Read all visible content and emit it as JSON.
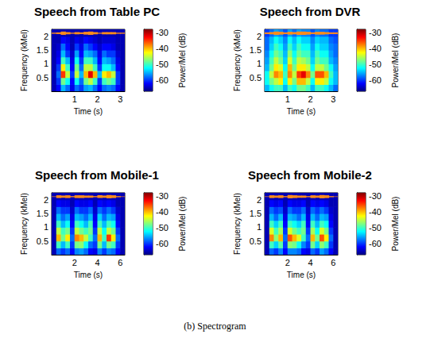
{
  "caption": "(b) Spectrogram",
  "chart_data": [
    {
      "type": "heatmap",
      "title": "Speech from Table PC",
      "xlabel": "Time (s)",
      "ylabel": "Frequency (kMel)",
      "xlim": [
        0,
        3.2
      ],
      "xticks": [
        1,
        2,
        3
      ],
      "ylim": [
        0,
        2.25
      ],
      "yticks": [
        0.5,
        1,
        1.5,
        2
      ],
      "time_edges": [
        0,
        0.2,
        0.4,
        0.6,
        0.8,
        1.0,
        1.2,
        1.4,
        1.6,
        1.8,
        2.0,
        2.2,
        2.4,
        2.6,
        2.8,
        3.0,
        3.2
      ],
      "freq_edges": [
        0,
        0.25,
        0.5,
        0.75,
        1.0,
        1.25,
        1.5,
        1.75,
        2.0,
        2.25
      ],
      "power": [
        [
          -65,
          -62,
          -55,
          -58,
          -63,
          -58,
          -60,
          -56,
          -55,
          -58,
          -62,
          -58,
          -57,
          -58,
          -62,
          -65
        ],
        [
          -65,
          -60,
          -48,
          -52,
          -62,
          -52,
          -58,
          -48,
          -45,
          -50,
          -60,
          -50,
          -48,
          -50,
          -60,
          -65
        ],
        [
          -65,
          -58,
          -35,
          -45,
          -60,
          -45,
          -55,
          -40,
          -32,
          -40,
          -55,
          -42,
          -40,
          -45,
          -60,
          -65
        ],
        [
          -65,
          -60,
          -42,
          -50,
          -62,
          -48,
          -58,
          -45,
          -45,
          -50,
          -60,
          -52,
          -52,
          -55,
          -62,
          -65
        ],
        [
          -65,
          -62,
          -50,
          -55,
          -63,
          -52,
          -60,
          -50,
          -50,
          -55,
          -62,
          -55,
          -56,
          -58,
          -63,
          -65
        ],
        [
          -65,
          -63,
          -55,
          -60,
          -64,
          -56,
          -62,
          -55,
          -56,
          -58,
          -63,
          -58,
          -60,
          -60,
          -64,
          -65
        ],
        [
          -65,
          -64,
          -58,
          -62,
          -65,
          -60,
          -63,
          -58,
          -60,
          -62,
          -64,
          -62,
          -62,
          -63,
          -65,
          -65
        ],
        [
          -65,
          -65,
          -62,
          -63,
          -65,
          -63,
          -64,
          -62,
          -63,
          -64,
          -65,
          -64,
          -64,
          -64,
          -65,
          -65
        ],
        [
          -65,
          -65,
          -65,
          -65,
          -65,
          -65,
          -65,
          -65,
          -65,
          -65,
          -65,
          -65,
          -65,
          -65,
          -65,
          -65
        ]
      ],
      "waveform": {
        "time": [
          0.1,
          0.3,
          0.5,
          0.7,
          0.9,
          1.1,
          1.3,
          1.5,
          1.7,
          1.9,
          2.1,
          2.3,
          2.5,
          2.7,
          2.9,
          3.1
        ],
        "low": [
          2.09,
          2.08,
          2.05,
          2.07,
          2.09,
          2.07,
          2.08,
          2.06,
          2.05,
          2.07,
          2.09,
          2.07,
          2.07,
          2.07,
          2.09,
          2.09
        ],
        "high": [
          2.13,
          2.14,
          2.17,
          2.15,
          2.13,
          2.15,
          2.14,
          2.16,
          2.17,
          2.15,
          2.13,
          2.15,
          2.15,
          2.15,
          2.13,
          2.13
        ]
      },
      "colorbar": {
        "label": "Power/Mel (dB)",
        "range": [
          -67,
          -28
        ],
        "ticks": [
          -60,
          -50,
          -40,
          -30
        ]
      }
    },
    {
      "type": "heatmap",
      "title": "Speech from DVR",
      "xlabel": "Time (s)",
      "ylabel": "Frequency (kMel)",
      "xlim": [
        0,
        3.2
      ],
      "xticks": [
        1,
        2,
        3
      ],
      "ylim": [
        0,
        2.25
      ],
      "yticks": [
        0.5,
        1,
        1.5,
        2
      ],
      "time_edges": [
        0,
        0.2,
        0.4,
        0.6,
        0.8,
        1.0,
        1.2,
        1.4,
        1.6,
        1.8,
        2.0,
        2.2,
        2.4,
        2.6,
        2.8,
        3.0,
        3.2
      ],
      "freq_edges": [
        0,
        0.25,
        0.5,
        0.75,
        1.0,
        1.25,
        1.5,
        1.75,
        2.0,
        2.25
      ],
      "power": [
        [
          -55,
          -52,
          -50,
          -50,
          -55,
          -50,
          -52,
          -48,
          -48,
          -50,
          -55,
          -50,
          -50,
          -52,
          -55,
          -58
        ],
        [
          -52,
          -48,
          -45,
          -42,
          -52,
          -42,
          -48,
          -40,
          -40,
          -45,
          -52,
          -42,
          -42,
          -45,
          -52,
          -55
        ],
        [
          -52,
          -45,
          -38,
          -40,
          -50,
          -38,
          -45,
          -35,
          -32,
          -38,
          -48,
          -36,
          -36,
          -40,
          -50,
          -55
        ],
        [
          -55,
          -48,
          -42,
          -44,
          -52,
          -40,
          -48,
          -42,
          -42,
          -45,
          -52,
          -45,
          -45,
          -48,
          -52,
          -56
        ],
        [
          -56,
          -50,
          -45,
          -48,
          -54,
          -44,
          -50,
          -45,
          -46,
          -48,
          -54,
          -48,
          -50,
          -50,
          -55,
          -57
        ],
        [
          -57,
          -52,
          -48,
          -50,
          -55,
          -47,
          -52,
          -48,
          -50,
          -50,
          -55,
          -50,
          -52,
          -52,
          -56,
          -58
        ],
        [
          -58,
          -54,
          -50,
          -52,
          -56,
          -50,
          -54,
          -50,
          -52,
          -52,
          -56,
          -52,
          -54,
          -54,
          -57,
          -58
        ],
        [
          -58,
          -55,
          -52,
          -54,
          -57,
          -52,
          -55,
          -52,
          -54,
          -54,
          -57,
          -54,
          -55,
          -55,
          -58,
          -59
        ],
        [
          -60,
          -58,
          -56,
          -57,
          -59,
          -56,
          -58,
          -56,
          -57,
          -57,
          -59,
          -57,
          -58,
          -58,
          -60,
          -60
        ]
      ],
      "waveform": {
        "time": [
          0.1,
          0.3,
          0.5,
          0.7,
          0.9,
          1.1,
          1.3,
          1.5,
          1.7,
          1.9,
          2.1,
          2.3,
          2.5,
          2.7,
          2.9,
          3.1
        ],
        "low": [
          2.08,
          2.07,
          2.05,
          2.06,
          2.08,
          2.06,
          2.07,
          2.05,
          2.05,
          2.06,
          2.08,
          2.06,
          2.06,
          2.07,
          2.08,
          2.08
        ],
        "high": [
          2.14,
          2.15,
          2.17,
          2.16,
          2.14,
          2.16,
          2.15,
          2.17,
          2.17,
          2.16,
          2.14,
          2.16,
          2.16,
          2.15,
          2.14,
          2.14
        ]
      },
      "colorbar": {
        "label": "Power/Mel (dB)",
        "range": [
          -67,
          -28
        ],
        "ticks": [
          -60,
          -50,
          -40,
          -30
        ]
      }
    },
    {
      "type": "heatmap",
      "title": "Speech from Mobile-1",
      "xlabel": "Time (s)",
      "ylabel": "Frequency (kMel)",
      "xlim": [
        0,
        6.4
      ],
      "xticks": [
        2,
        4,
        6
      ],
      "ylim": [
        0,
        2.25
      ],
      "yticks": [
        0.5,
        1,
        1.5,
        2
      ],
      "time_edges": [
        0,
        0.4,
        0.8,
        1.2,
        1.6,
        2.0,
        2.4,
        2.8,
        3.2,
        3.6,
        4.0,
        4.4,
        4.8,
        5.2,
        5.6,
        6.0,
        6.4
      ],
      "freq_edges": [
        0,
        0.25,
        0.5,
        0.75,
        1.0,
        1.25,
        1.5,
        1.75,
        2.0,
        2.25
      ],
      "power": [
        [
          -65,
          -58,
          -60,
          -58,
          -62,
          -57,
          -56,
          -58,
          -62,
          -63,
          -57,
          -60,
          -57,
          -58,
          -62,
          -65
        ],
        [
          -65,
          -50,
          -55,
          -50,
          -60,
          -48,
          -47,
          -52,
          -58,
          -60,
          -48,
          -55,
          -48,
          -50,
          -60,
          -65
        ],
        [
          -65,
          -40,
          -48,
          -42,
          -58,
          -38,
          -40,
          -45,
          -50,
          -58,
          -40,
          -50,
          -35,
          -42,
          -58,
          -65
        ],
        [
          -65,
          -45,
          -50,
          -48,
          -60,
          -45,
          -48,
          -50,
          -48,
          -60,
          -45,
          -52,
          -45,
          -48,
          -60,
          -65
        ],
        [
          -65,
          -50,
          -55,
          -52,
          -62,
          -50,
          -52,
          -55,
          -50,
          -62,
          -50,
          -55,
          -50,
          -52,
          -62,
          -65
        ],
        [
          -65,
          -55,
          -58,
          -56,
          -63,
          -55,
          -56,
          -58,
          -55,
          -63,
          -54,
          -58,
          -55,
          -56,
          -63,
          -65
        ],
        [
          -65,
          -58,
          -60,
          -60,
          -64,
          -58,
          -60,
          -60,
          -58,
          -64,
          -58,
          -60,
          -58,
          -60,
          -64,
          -65
        ],
        [
          -65,
          -62,
          -63,
          -63,
          -65,
          -62,
          -63,
          -63,
          -62,
          -65,
          -62,
          -63,
          -62,
          -63,
          -65,
          -65
        ],
        [
          -65,
          -65,
          -65,
          -65,
          -65,
          -65,
          -65,
          -65,
          -65,
          -65,
          -65,
          -65,
          -65,
          -65,
          -65,
          -65
        ]
      ],
      "waveform": {
        "time": [
          0.2,
          0.6,
          1.0,
          1.4,
          1.8,
          2.2,
          2.6,
          3.0,
          3.4,
          3.8,
          4.2,
          4.6,
          5.0,
          5.4,
          5.8,
          6.2
        ],
        "low": [
          2.1,
          2.06,
          2.07,
          2.06,
          2.09,
          2.06,
          2.06,
          2.07,
          2.07,
          2.09,
          2.06,
          2.07,
          2.05,
          2.06,
          2.09,
          2.1
        ],
        "high": [
          2.12,
          2.16,
          2.15,
          2.16,
          2.13,
          2.16,
          2.16,
          2.15,
          2.15,
          2.13,
          2.16,
          2.15,
          2.17,
          2.16,
          2.13,
          2.12
        ]
      },
      "colorbar": {
        "label": "Power/Mel (dB)",
        "range": [
          -67,
          -28
        ],
        "ticks": [
          -60,
          -50,
          -40,
          -30
        ]
      }
    },
    {
      "type": "heatmap",
      "title": "Speech from Mobile-2",
      "xlabel": "Time (s)",
      "ylabel": "Frequency (kMel)",
      "xlim": [
        0,
        6.4
      ],
      "xticks": [
        2,
        4,
        6
      ],
      "ylim": [
        0,
        2.25
      ],
      "yticks": [
        0.5,
        1,
        1.5,
        2
      ],
      "time_edges": [
        0,
        0.4,
        0.8,
        1.2,
        1.6,
        2.0,
        2.4,
        2.8,
        3.2,
        3.6,
        4.0,
        4.4,
        4.8,
        5.2,
        5.6,
        6.0,
        6.4
      ],
      "freq_edges": [
        0,
        0.25,
        0.5,
        0.75,
        1.0,
        1.25,
        1.5,
        1.75,
        2.0,
        2.25
      ],
      "power": [
        [
          -65,
          -58,
          -60,
          -57,
          -62,
          -57,
          -57,
          -58,
          -62,
          -63,
          -58,
          -60,
          -56,
          -58,
          -62,
          -65
        ],
        [
          -65,
          -50,
          -54,
          -49,
          -60,
          -47,
          -48,
          -52,
          -57,
          -60,
          -48,
          -54,
          -47,
          -50,
          -60,
          -65
        ],
        [
          -65,
          -38,
          -47,
          -40,
          -58,
          -36,
          -40,
          -44,
          -50,
          -58,
          -40,
          -48,
          -36,
          -42,
          -58,
          -65
        ],
        [
          -65,
          -44,
          -50,
          -46,
          -60,
          -44,
          -48,
          -50,
          -48,
          -60,
          -46,
          -52,
          -44,
          -48,
          -60,
          -65
        ],
        [
          -65,
          -50,
          -54,
          -50,
          -62,
          -50,
          -52,
          -54,
          -50,
          -62,
          -50,
          -55,
          -50,
          -52,
          -62,
          -65
        ],
        [
          -65,
          -55,
          -58,
          -55,
          -63,
          -55,
          -56,
          -58,
          -55,
          -63,
          -55,
          -58,
          -55,
          -56,
          -63,
          -65
        ],
        [
          -65,
          -58,
          -60,
          -59,
          -64,
          -58,
          -60,
          -60,
          -58,
          -64,
          -58,
          -60,
          -58,
          -60,
          -64,
          -65
        ],
        [
          -65,
          -62,
          -63,
          -62,
          -65,
          -62,
          -63,
          -63,
          -62,
          -65,
          -62,
          -63,
          -62,
          -63,
          -65,
          -65
        ],
        [
          -65,
          -65,
          -65,
          -65,
          -65,
          -65,
          -65,
          -65,
          -65,
          -65,
          -65,
          -65,
          -65,
          -65,
          -65,
          -65
        ]
      ],
      "waveform": {
        "time": [
          0.2,
          0.6,
          1.0,
          1.4,
          1.8,
          2.2,
          2.6,
          3.0,
          3.4,
          3.8,
          4.2,
          4.6,
          5.0,
          5.4,
          5.8,
          6.2
        ],
        "low": [
          2.1,
          2.06,
          2.07,
          2.06,
          2.09,
          2.05,
          2.06,
          2.07,
          2.07,
          2.09,
          2.06,
          2.07,
          2.05,
          2.06,
          2.09,
          2.1
        ],
        "high": [
          2.12,
          2.16,
          2.15,
          2.16,
          2.13,
          2.17,
          2.16,
          2.15,
          2.15,
          2.13,
          2.16,
          2.15,
          2.17,
          2.16,
          2.13,
          2.12
        ]
      },
      "colorbar": {
        "label": "Power/Mel (dB)",
        "range": [
          -67,
          -28
        ],
        "ticks": [
          -60,
          -50,
          -40,
          -30
        ]
      }
    }
  ]
}
